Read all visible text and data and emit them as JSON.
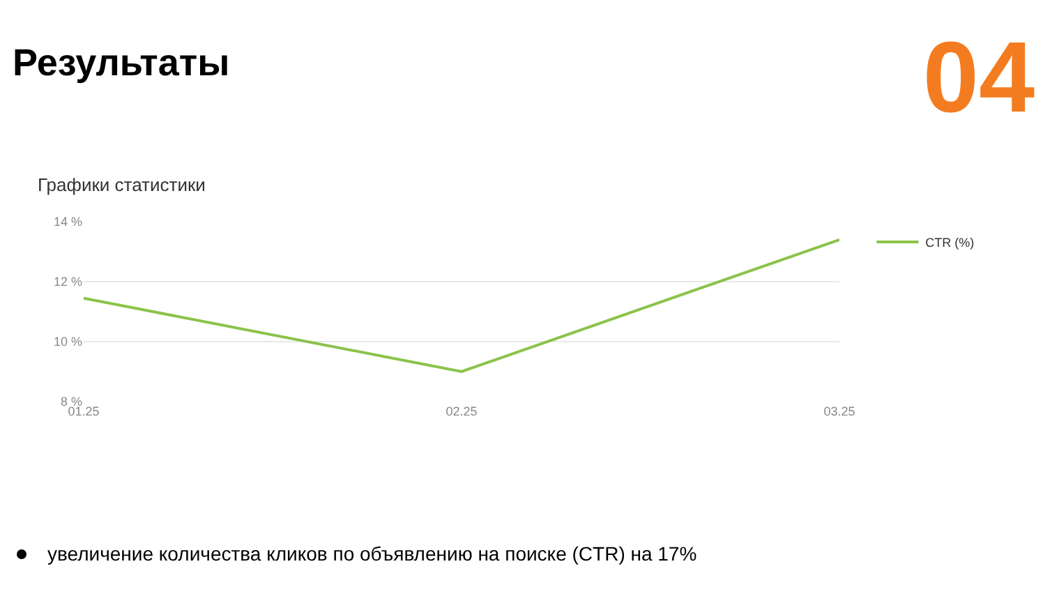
{
  "chart_data": {
    "type": "line",
    "title": "Результаты",
    "subtitle": "Графики статистики",
    "annotations": [
      "04",
      "увеличение количества кликов по объявлению на поиске (CTR) на 17%"
    ],
    "categories": [
      "01.25",
      "02.25",
      "03.25"
    ],
    "series": [
      {
        "name": "CTR (%)",
        "color": "#8bc34a",
        "values": [
          11.45,
          9.0,
          13.4
        ]
      }
    ],
    "ylim": [
      8,
      14
    ],
    "yticks": [
      {
        "value": 8,
        "label": "8 %"
      },
      {
        "value": 10,
        "label": "10 %"
      },
      {
        "value": 12,
        "label": "12 %"
      },
      {
        "value": 14,
        "label": "14 %"
      }
    ],
    "grid": "y",
    "legend": "top right",
    "marker": "none",
    "line_style": "solid"
  }
}
